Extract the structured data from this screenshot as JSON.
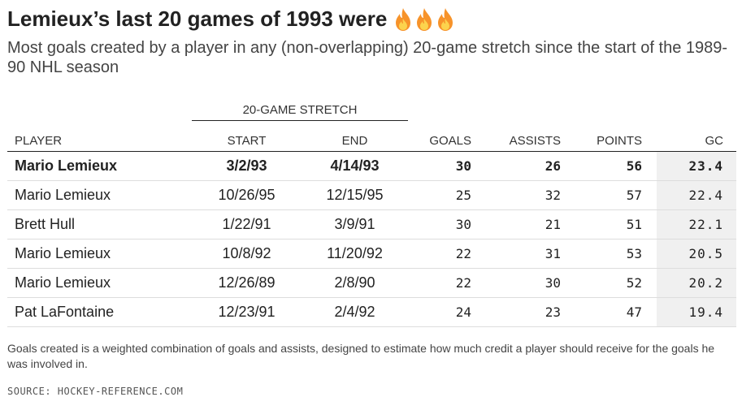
{
  "header": {
    "title": "Lemieux’s last 20 games of 1993 were",
    "subtitle": "Most goals created by a player in any (non-overlapping) 20-game stretch since the start of the 1989-90 NHL season"
  },
  "icons": [
    "fire-icon",
    "fire-icon",
    "fire-icon"
  ],
  "colors": {
    "gc_column_bg": "#f0f0f0",
    "flame_outer": "#f7932a",
    "flame_inner": "#fcd34d"
  },
  "chart_data": {
    "type": "table",
    "group_header": "20-GAME STRETCH",
    "columns": [
      "PLAYER",
      "START",
      "END",
      "GOALS",
      "ASSISTS",
      "POINTS",
      "GC"
    ],
    "rows": [
      {
        "player": "Mario Lemieux",
        "start": "3/2/93",
        "end": "4/14/93",
        "goals": "30",
        "assists": "26",
        "points": "56",
        "gc": "23.4"
      },
      {
        "player": "Mario Lemieux",
        "start": "10/26/95",
        "end": "12/15/95",
        "goals": "25",
        "assists": "32",
        "points": "57",
        "gc": "22.4"
      },
      {
        "player": "Brett Hull",
        "start": "1/22/91",
        "end": "3/9/91",
        "goals": "30",
        "assists": "21",
        "points": "51",
        "gc": "22.1"
      },
      {
        "player": "Mario Lemieux",
        "start": "10/8/92",
        "end": "11/20/92",
        "goals": "22",
        "assists": "31",
        "points": "53",
        "gc": "20.5"
      },
      {
        "player": "Mario Lemieux",
        "start": "12/26/89",
        "end": "2/8/90",
        "goals": "22",
        "assists": "30",
        "points": "52",
        "gc": "20.2"
      },
      {
        "player": "Pat LaFontaine",
        "start": "12/23/91",
        "end": "2/4/92",
        "goals": "24",
        "assists": "23",
        "points": "47",
        "gc": "19.4"
      }
    ]
  },
  "footer": {
    "note": "Goals created is a weighted combination of goals and assists, designed to estimate how much credit a player should receive for the goals he was involved in.",
    "source": "SOURCE: HOCKEY-REFERENCE.COM"
  }
}
